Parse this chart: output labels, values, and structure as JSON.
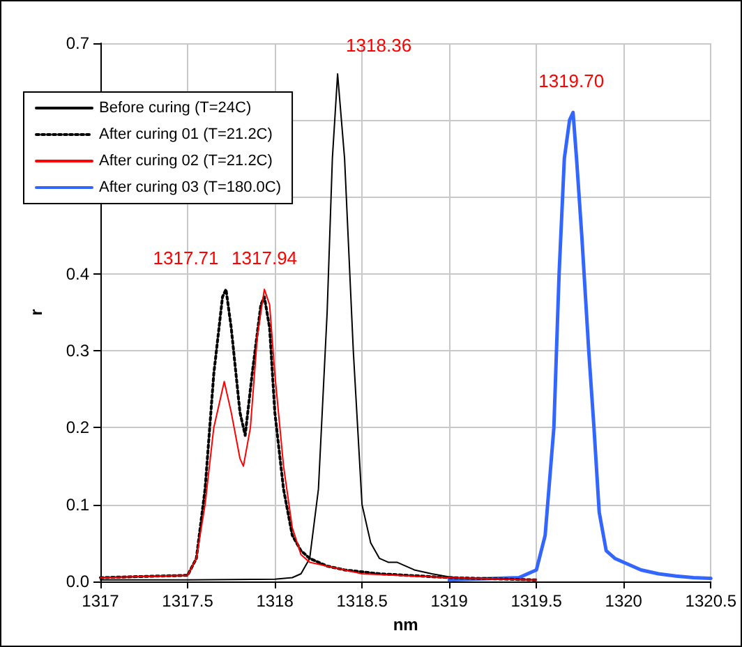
{
  "chart_data": {
    "type": "line",
    "xlabel": "nm",
    "ylabel": "r",
    "xlim": [
      1317,
      1320.5
    ],
    "xticks": [
      1317,
      1317.5,
      1318,
      1318.5,
      1319,
      1319.5,
      1320,
      1320.5
    ],
    "ylim": [
      0,
      0.7
    ],
    "yticks": [
      {
        "value": 0,
        "label": "0.0"
      },
      {
        "value": 0.1,
        "label": "0.1"
      },
      {
        "value": 0.2,
        "label": "0.2"
      },
      {
        "value": 0.3,
        "label": "0.3"
      },
      {
        "value": 0.4,
        "label": "0.4"
      },
      {
        "value": 0.5,
        "label": null
      },
      {
        "value": 0.6,
        "label": null
      },
      {
        "value": 0.7,
        "label": "0.7"
      }
    ],
    "grid": true,
    "legend": "top left",
    "marker": "none",
    "series": [
      {
        "name": "Before curing (T=24C)",
        "color": "#000000",
        "line_style": "solid",
        "x": [
          1317,
          1317.5,
          1318,
          1318.1,
          1318.15,
          1318.2,
          1318.25,
          1318.3,
          1318.33,
          1318.36,
          1318.4,
          1318.45,
          1318.5,
          1318.55,
          1318.6,
          1318.65,
          1318.7,
          1318.75,
          1318.8,
          1318.9,
          1319,
          1319.05
        ],
        "values": [
          0.002,
          0.002,
          0.003,
          0.005,
          0.01,
          0.03,
          0.12,
          0.35,
          0.55,
          0.66,
          0.55,
          0.3,
          0.1,
          0.05,
          0.03,
          0.025,
          0.025,
          0.02,
          0.015,
          0.01,
          0.006,
          0.005
        ]
      },
      {
        "name": "After curing 01 (T=21.2C)",
        "color": "#000000",
        "line_style": "dotted",
        "x": [
          1317,
          1317.5,
          1317.55,
          1317.6,
          1317.65,
          1317.7,
          1317.72,
          1317.75,
          1317.8,
          1317.83,
          1317.87,
          1317.92,
          1317.94,
          1317.97,
          1318,
          1318.05,
          1318.1,
          1318.15,
          1318.2,
          1318.3,
          1318.4,
          1318.6,
          1319,
          1319.5
        ],
        "values": [
          0.005,
          0.008,
          0.03,
          0.12,
          0.27,
          0.37,
          0.38,
          0.33,
          0.22,
          0.19,
          0.27,
          0.36,
          0.37,
          0.33,
          0.22,
          0.12,
          0.06,
          0.04,
          0.03,
          0.02,
          0.015,
          0.01,
          0.005,
          0.002
        ]
      },
      {
        "name": "After curing 02 (T=21.2C)",
        "color": "#ff0000",
        "line_style": "solid",
        "x": [
          1317,
          1317.5,
          1317.55,
          1317.6,
          1317.65,
          1317.71,
          1317.75,
          1317.8,
          1317.82,
          1317.86,
          1317.9,
          1317.94,
          1317.97,
          1318,
          1318.05,
          1318.1,
          1318.15,
          1318.2,
          1318.3,
          1318.5,
          1319,
          1319.5
        ],
        "values": [
          0.005,
          0.008,
          0.03,
          0.1,
          0.2,
          0.26,
          0.22,
          0.16,
          0.15,
          0.2,
          0.32,
          0.38,
          0.36,
          0.27,
          0.15,
          0.07,
          0.035,
          0.025,
          0.02,
          0.01,
          0.005,
          0.002
        ]
      },
      {
        "name": "After curing 03 (T=180.0C)",
        "color": "#3366ff",
        "line_style": "solid",
        "x": [
          1319,
          1319.4,
          1319.5,
          1319.55,
          1319.6,
          1319.63,
          1319.66,
          1319.69,
          1319.71,
          1319.73,
          1319.76,
          1319.8,
          1319.83,
          1319.86,
          1319.9,
          1319.95,
          1320,
          1320.05,
          1320.1,
          1320.2,
          1320.3,
          1320.4,
          1320.5
        ],
        "values": [
          0.002,
          0.005,
          0.015,
          0.06,
          0.2,
          0.4,
          0.55,
          0.6,
          0.61,
          0.55,
          0.45,
          0.3,
          0.2,
          0.09,
          0.04,
          0.03,
          0.025,
          0.02,
          0.015,
          0.01,
          0.007,
          0.005,
          0.004
        ]
      }
    ],
    "annotations": [
      {
        "text": "1317.71",
        "x": 1317.71,
        "y": 0.38
      },
      {
        "text": "1317.94",
        "x": 1317.94,
        "y": 0.38
      },
      {
        "text": "1318.36",
        "x": 1318.36,
        "y": 0.66
      },
      {
        "text": "1319.70",
        "x": 1319.7,
        "y": 0.61
      }
    ]
  }
}
